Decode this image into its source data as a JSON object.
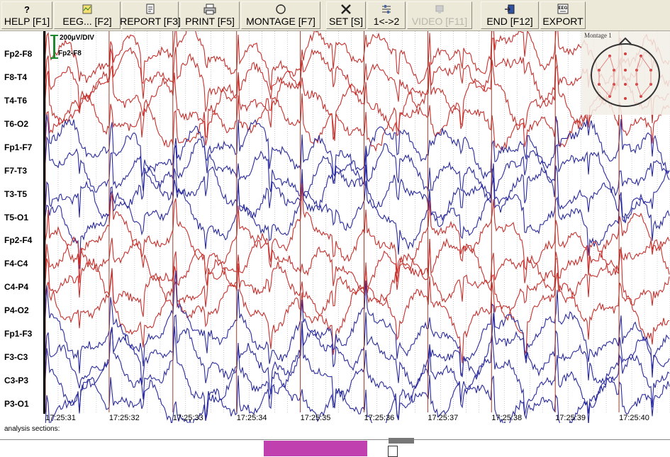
{
  "toolbar": {
    "buttons": [
      {
        "label": "HELP [F1]",
        "icon": "help-icon",
        "enabled": true
      },
      {
        "label": "EEG... [F2]",
        "icon": "eeg-file-icon",
        "enabled": true
      },
      {
        "label": "REPORT [F3]",
        "icon": "report-icon",
        "enabled": true
      },
      {
        "label": "PRINT [F5]",
        "icon": "print-icon",
        "enabled": true
      },
      {
        "label": "MONTAGE [F7]",
        "icon": "montage-icon",
        "enabled": true
      },
      {
        "label": "SET [S]",
        "icon": "tools-icon",
        "enabled": true
      },
      {
        "label": "1<->2",
        "icon": "switch-icon",
        "enabled": true
      },
      {
        "label": "VIDEO [F11]",
        "icon": "video-icon",
        "enabled": false
      },
      {
        "label": "END [F12]",
        "icon": "exit-icon",
        "enabled": true
      },
      {
        "label": "EXPORT",
        "icon": "export-icon",
        "enabled": true
      }
    ],
    "help_icon_glyph": "?",
    "export_icon_text": "EEG"
  },
  "scale": {
    "label": "200μV/DIV",
    "channel": "Fp2-F8"
  },
  "montage": {
    "title": "Montage 1"
  },
  "channels": [
    {
      "name": "Fp2-F8",
      "group": "right"
    },
    {
      "name": "F8-T4",
      "group": "right"
    },
    {
      "name": "T4-T6",
      "group": "right"
    },
    {
      "name": "T6-O2",
      "group": "right"
    },
    {
      "name": "Fp1-F7",
      "group": "left"
    },
    {
      "name": "F7-T3",
      "group": "left"
    },
    {
      "name": "T3-T5",
      "group": "left"
    },
    {
      "name": "T5-O1",
      "group": "left"
    },
    {
      "name": "Fp2-F4",
      "group": "right"
    },
    {
      "name": "F4-C4",
      "group": "right"
    },
    {
      "name": "C4-P4",
      "group": "right"
    },
    {
      "name": "P4-O2",
      "group": "right"
    },
    {
      "name": "Fp1-F3",
      "group": "left"
    },
    {
      "name": "F3-C3",
      "group": "left"
    },
    {
      "name": "C3-P3",
      "group": "left"
    },
    {
      "name": "P3-O1",
      "group": "left"
    }
  ],
  "colors": {
    "right": "#c8302c",
    "left": "#2a2aa0",
    "second_line": "#a04030",
    "grid": "#a8a8a8",
    "scale_bar": "#1e8a2e",
    "section": "#c040b0"
  },
  "timeline": {
    "labels": [
      "17:25:31",
      "17:25:32",
      "17:25:33",
      "17:25:34",
      "17:25:35",
      "17:25:36",
      "17:25:37",
      "17:25:38",
      "17:25:39",
      "17:25:40"
    ]
  },
  "status": {
    "analysis_label": "analysis sections:"
  }
}
